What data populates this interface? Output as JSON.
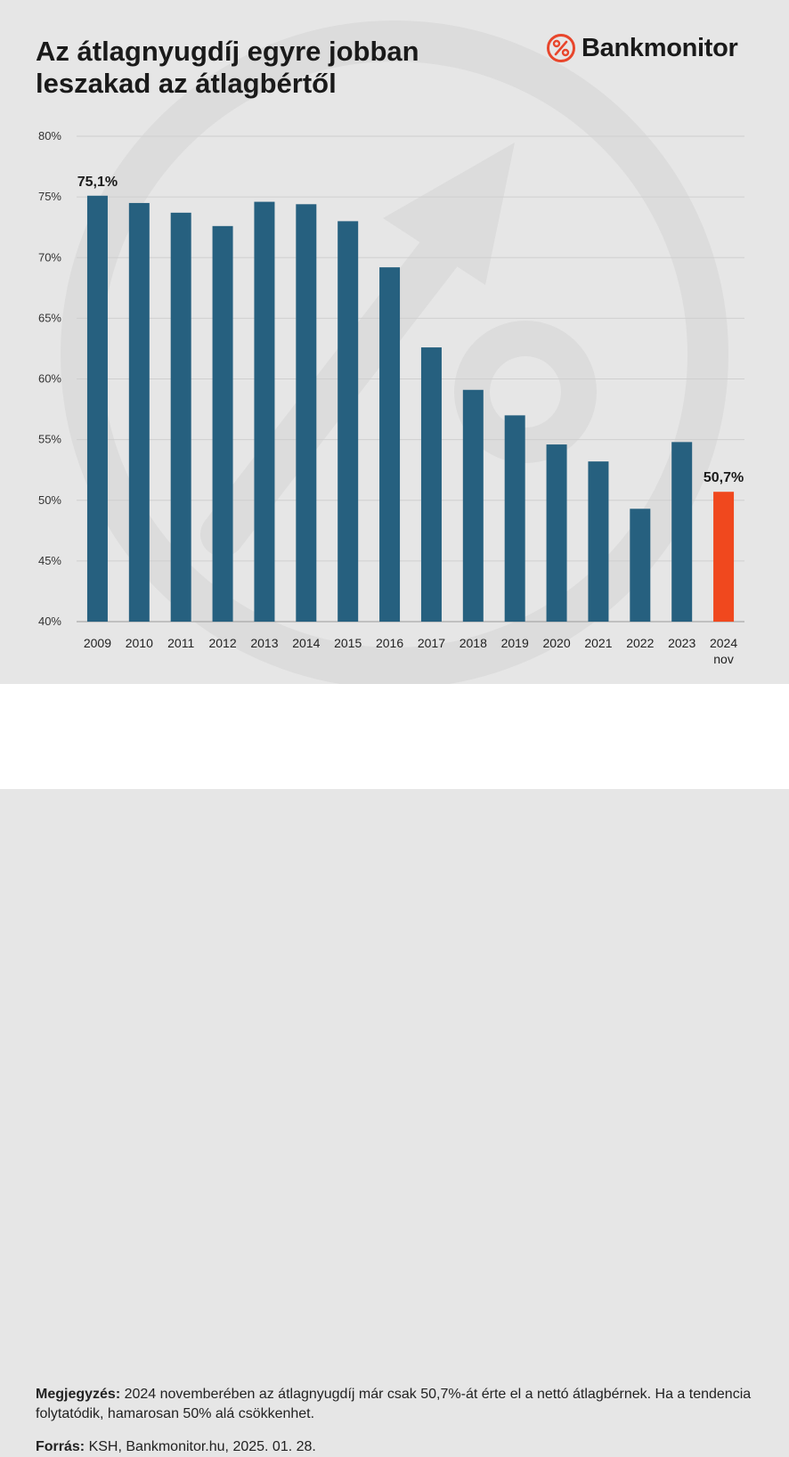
{
  "header": {
    "title_line1": "Az átlagnyugdíj egyre jobban",
    "title_line2": "leszakad az átlagbértől",
    "brand_name": "Bankmonitor",
    "brand_icon": "percent-circle-icon",
    "brand_color": "#e8462c"
  },
  "chart_data": {
    "type": "bar",
    "title": "Az átlagnyugdíj egyre jobban leszakad az átlagbértől",
    "categories": [
      "2009",
      "2010",
      "2011",
      "2012",
      "2013",
      "2014",
      "2015",
      "2016",
      "2017",
      "2018",
      "2019",
      "2020",
      "2021",
      "2022",
      "2023",
      "2024 nov"
    ],
    "values": [
      75.1,
      74.5,
      73.7,
      72.6,
      74.6,
      74.4,
      73.0,
      69.2,
      62.6,
      59.1,
      57.0,
      54.6,
      53.2,
      49.3,
      54.8,
      50.7
    ],
    "ylim": [
      40,
      80
    ],
    "yticks": [
      40,
      45,
      50,
      55,
      60,
      65,
      70,
      75,
      80
    ],
    "ytick_labels": [
      "40%",
      "45%",
      "50%",
      "55%",
      "60%",
      "65%",
      "70%",
      "75%",
      "80%"
    ],
    "data_labels": [
      {
        "category": "2009",
        "text": "75,1%"
      },
      {
        "category": "2024 nov",
        "text": "50,7%"
      }
    ],
    "bar_color": "#26607f",
    "highlight_color": "#f0481e",
    "highlight_category": "2024 nov",
    "grid": true,
    "legend": "none"
  },
  "footer": {
    "note_label": "Megjegyzés:",
    "note_text": "2024 novemberében az átlagnyugdíj már csak 50,7%-át érte el a nettó átlagbérnek. Ha a tendencia folytatódik, hamarosan 50% alá csökkenhet.",
    "source_label": "Forrás:",
    "source_text": "KSH, Bankmonitor.hu, 2025. 01. 28."
  }
}
